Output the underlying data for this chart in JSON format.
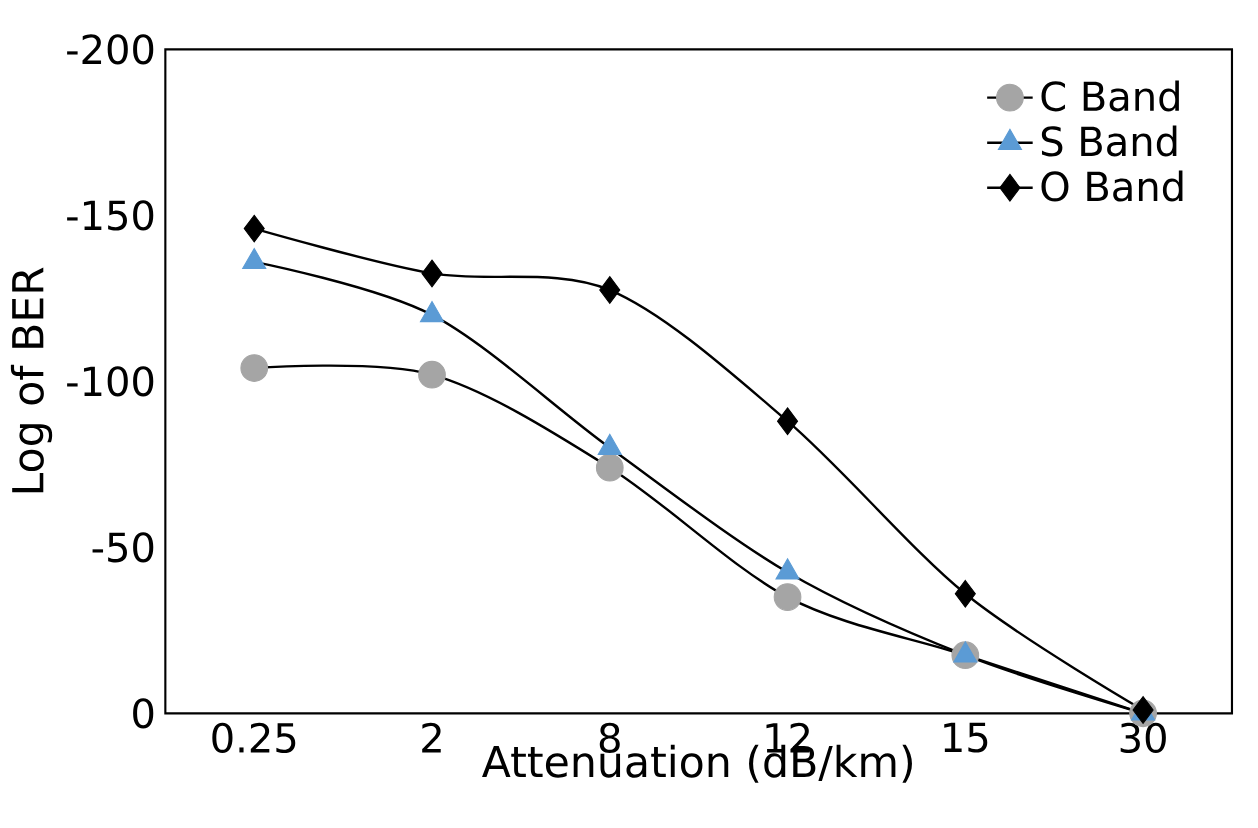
{
  "chart_data": {
    "type": "line",
    "xlabel": "Attenuation (dB/km)",
    "ylabel": "Log of BER",
    "categories": [
      "0.25",
      "2",
      "8",
      "12",
      "15",
      "30"
    ],
    "series": [
      {
        "name": "C Band",
        "color": "#a5a5a5",
        "marker": "circle",
        "values": [
          -104,
          -102,
          -74,
          -35,
          -17.5,
          0
        ]
      },
      {
        "name": "S Band",
        "color": "#5b9bd5",
        "marker": "triangle",
        "values": [
          -136,
          -120,
          -80,
          -42.5,
          -17.5,
          0
        ]
      },
      {
        "name": "O Band",
        "color": "#000000",
        "marker": "diamond",
        "values": [
          -146,
          -132.5,
          -127.5,
          -88,
          -36,
          -1
        ]
      }
    ],
    "ylim": [
      0,
      -200
    ],
    "yticks": [
      -200,
      -150,
      -100,
      -50,
      0
    ],
    "grid": false,
    "legend": "top right",
    "line_style": "solid"
  }
}
